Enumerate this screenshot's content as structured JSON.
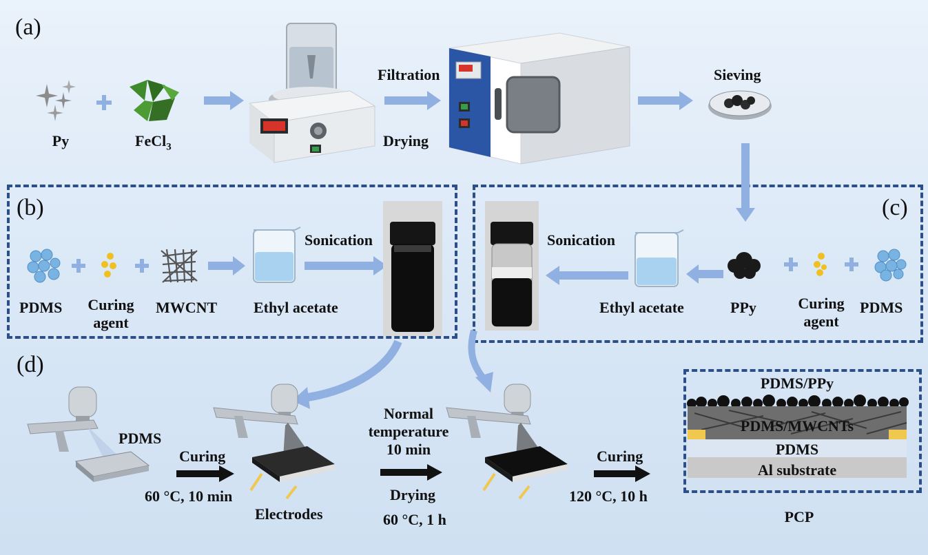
{
  "panels": {
    "a": "(a)",
    "b": "(b)",
    "c": "(c)",
    "d": "(d)"
  },
  "row_a": {
    "py": "Py",
    "fecl3_main": "FeCl",
    "fecl3_sub": "3",
    "filtration": "Filtration",
    "drying": "Drying",
    "sieving": "Sieving"
  },
  "row_b": {
    "pdms": "PDMS",
    "curing_agent_1": "Curing",
    "curing_agent_2": "agent",
    "mwcnt": "MWCNT",
    "ethyl_acetate": "Ethyl acetate",
    "sonication": "Sonication"
  },
  "row_c": {
    "sonication": "Sonication",
    "ethyl_acetate": "Ethyl acetate",
    "ppy": "PPy",
    "curing_agent_1": "Curing",
    "curing_agent_2": "agent",
    "pdms": "PDMS"
  },
  "row_d": {
    "pdms": "PDMS",
    "curing_1": "Curing",
    "cond_1": "60 °C, 10 min",
    "electrodes": "Electrodes",
    "normal_1": "Normal",
    "normal_2": "temperature",
    "normal_3": "10 min",
    "drying": "Drying",
    "cond_2": "60 °C, 1 h",
    "curing_2": "Curing",
    "cond_3": "120 °C, 10 h",
    "pcp": "PCP"
  },
  "layers": {
    "top": "PDMS/PPy",
    "mid": "PDMS/MWCNTs",
    "pdms": "PDMS",
    "sub": "Al substrate"
  },
  "colors": {
    "arrow_light": "#8fb0e0",
    "arrow_dark": "#111111",
    "dash": "#2b4f86",
    "electrode": "#f0c850"
  }
}
